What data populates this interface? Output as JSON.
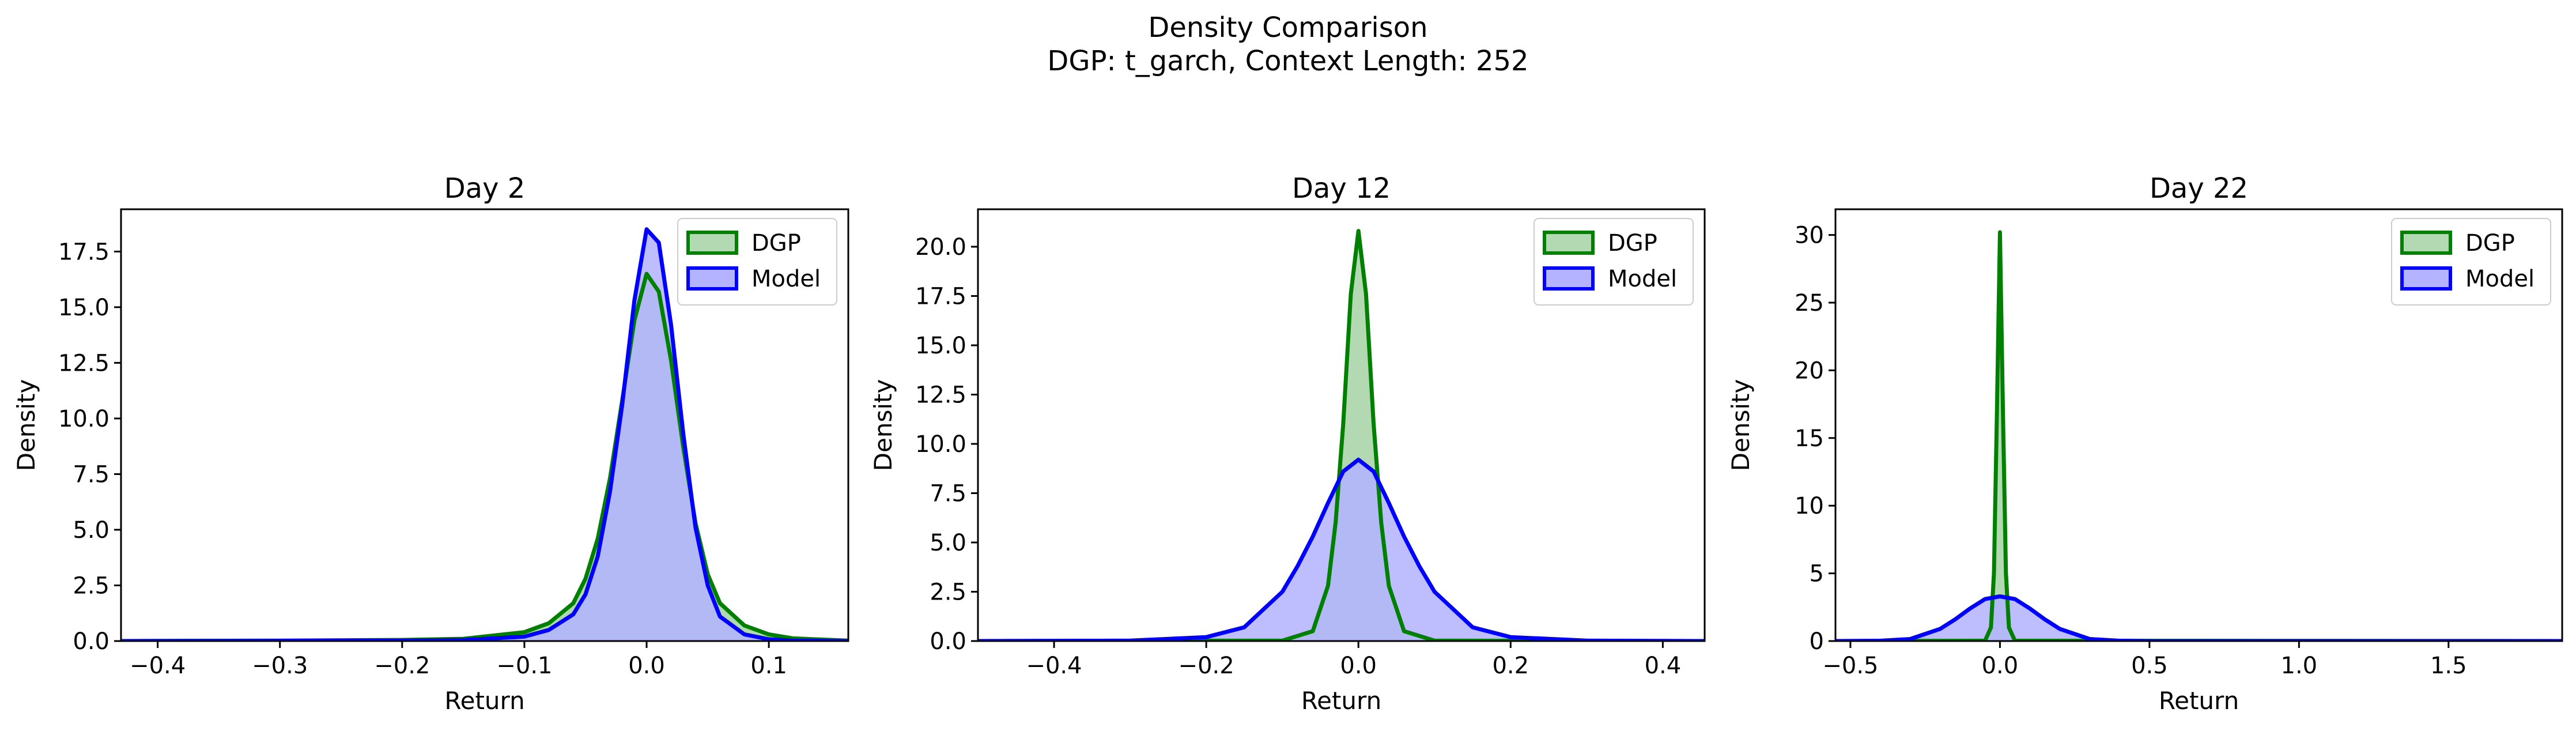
{
  "figure": {
    "title": "Density Comparison",
    "subtitle": "DGP: t_garch, Context Length: 252"
  },
  "colors": {
    "dgp": "#008000",
    "model": "#0000ff",
    "dgp_fill": "#b3d9b3",
    "model_fill": "#b3b3ff",
    "overlap_fill": "#7f99c7"
  },
  "chart_data": [
    {
      "type": "area",
      "title": "Day 2",
      "xlabel": "Return",
      "ylabel": "Density",
      "xlim": [
        -0.43,
        0.165
      ],
      "ylim": [
        0,
        19.4
      ],
      "xticks": [
        -0.4,
        -0.3,
        -0.2,
        -0.1,
        0.0,
        0.1
      ],
      "xticklabels": [
        "−0.4",
        "−0.3",
        "−0.2",
        "−0.1",
        "0.0",
        "0.1"
      ],
      "yticks": [
        0,
        2.5,
        5,
        7.5,
        10,
        12.5,
        15,
        17.5
      ],
      "yticklabels": [
        "0.0",
        "2.5",
        "5.0",
        "7.5",
        "10.0",
        "12.5",
        "15.0",
        "17.5"
      ],
      "legend": {
        "position": "top-right",
        "entries": [
          "DGP",
          "Model"
        ]
      },
      "grid": false,
      "series": [
        {
          "name": "DGP",
          "x": [
            -0.43,
            -0.3,
            -0.2,
            -0.15,
            -0.1,
            -0.08,
            -0.06,
            -0.05,
            -0.04,
            -0.03,
            -0.02,
            -0.01,
            0.0,
            0.01,
            0.02,
            0.03,
            0.04,
            0.05,
            0.06,
            0.08,
            0.1,
            0.12,
            0.165
          ],
          "y": [
            0,
            0.02,
            0.05,
            0.1,
            0.4,
            0.8,
            1.7,
            2.8,
            4.6,
            7.3,
            10.8,
            14.4,
            16.5,
            15.7,
            12.6,
            8.7,
            5.3,
            3.0,
            1.7,
            0.7,
            0.3,
            0.12,
            0.02
          ]
        },
        {
          "name": "Model",
          "x": [
            -0.43,
            -0.3,
            -0.2,
            -0.15,
            -0.1,
            -0.08,
            -0.06,
            -0.05,
            -0.04,
            -0.03,
            -0.02,
            -0.01,
            0.0,
            0.01,
            0.02,
            0.03,
            0.04,
            0.05,
            0.06,
            0.08,
            0.1,
            0.12,
            0.165
          ],
          "y": [
            0,
            0.01,
            0.02,
            0.05,
            0.2,
            0.5,
            1.2,
            2.1,
            3.8,
            6.7,
            10.6,
            15.3,
            18.5,
            17.9,
            14.2,
            9.3,
            5.1,
            2.5,
            1.1,
            0.3,
            0.08,
            0.02,
            0
          ]
        }
      ]
    },
    {
      "type": "area",
      "title": "Day 12",
      "xlabel": "Return",
      "ylabel": "Density",
      "xlim": [
        -0.5,
        0.455
      ],
      "ylim": [
        0,
        21.9
      ],
      "xticks": [
        -0.4,
        -0.2,
        0.0,
        0.2,
        0.4
      ],
      "xticklabels": [
        "−0.4",
        "−0.2",
        "0.0",
        "0.2",
        "0.4"
      ],
      "yticks": [
        0,
        2.5,
        5,
        7.5,
        10,
        12.5,
        15,
        17.5,
        20
      ],
      "yticklabels": [
        "0.0",
        "2.5",
        "5.0",
        "7.5",
        "10.0",
        "12.5",
        "15.0",
        "17.5",
        "20.0"
      ],
      "legend": {
        "position": "top-right",
        "entries": [
          "DGP",
          "Model"
        ]
      },
      "grid": false,
      "series": [
        {
          "name": "DGP",
          "x": [
            -0.5,
            -0.1,
            -0.06,
            -0.04,
            -0.03,
            -0.02,
            -0.01,
            0.0,
            0.01,
            0.02,
            0.03,
            0.04,
            0.06,
            0.1,
            0.455
          ],
          "y": [
            0,
            0.02,
            0.5,
            2.8,
            6.0,
            11.0,
            17.6,
            20.8,
            17.6,
            11.0,
            6.0,
            2.8,
            0.5,
            0.02,
            0
          ]
        },
        {
          "name": "Model",
          "x": [
            -0.5,
            -0.3,
            -0.2,
            -0.15,
            -0.1,
            -0.08,
            -0.06,
            -0.04,
            -0.02,
            0.0,
            0.02,
            0.04,
            0.06,
            0.08,
            0.1,
            0.15,
            0.2,
            0.3,
            0.455
          ],
          "y": [
            0,
            0.02,
            0.2,
            0.7,
            2.5,
            3.8,
            5.3,
            7.0,
            8.6,
            9.2,
            8.6,
            7.0,
            5.3,
            3.8,
            2.5,
            0.7,
            0.2,
            0.02,
            0
          ]
        }
      ]
    },
    {
      "type": "area",
      "title": "Day 22",
      "xlabel": "Return",
      "ylabel": "Density",
      "xlim": [
        -0.55,
        1.88
      ],
      "ylim": [
        0,
        31.9
      ],
      "xticks": [
        -0.5,
        0.0,
        0.5,
        1.0,
        1.5
      ],
      "xticklabels": [
        "−0.5",
        "0.0",
        "0.5",
        "1.0",
        "1.5"
      ],
      "yticks": [
        0,
        5,
        10,
        15,
        20,
        25,
        30
      ],
      "yticklabels": [
        "0",
        "5",
        "10",
        "15",
        "20",
        "25",
        "30"
      ],
      "legend": {
        "position": "top-right",
        "entries": [
          "DGP",
          "Model"
        ]
      },
      "grid": false,
      "series": [
        {
          "name": "DGP",
          "x": [
            -0.55,
            -0.05,
            -0.03,
            -0.02,
            -0.01,
            0.0,
            0.01,
            0.02,
            0.03,
            0.05,
            1.88
          ],
          "y": [
            0,
            0.02,
            1.0,
            5.0,
            17.0,
            30.2,
            17.0,
            5.0,
            1.0,
            0.02,
            0
          ]
        },
        {
          "name": "Model",
          "x": [
            -0.55,
            -0.4,
            -0.3,
            -0.2,
            -0.15,
            -0.1,
            -0.05,
            0.0,
            0.05,
            0.1,
            0.15,
            0.2,
            0.3,
            0.4,
            0.5,
            1.88
          ],
          "y": [
            0,
            0.02,
            0.15,
            0.9,
            1.6,
            2.4,
            3.1,
            3.3,
            3.1,
            2.4,
            1.6,
            0.9,
            0.15,
            0.02,
            0,
            0
          ]
        }
      ]
    }
  ]
}
